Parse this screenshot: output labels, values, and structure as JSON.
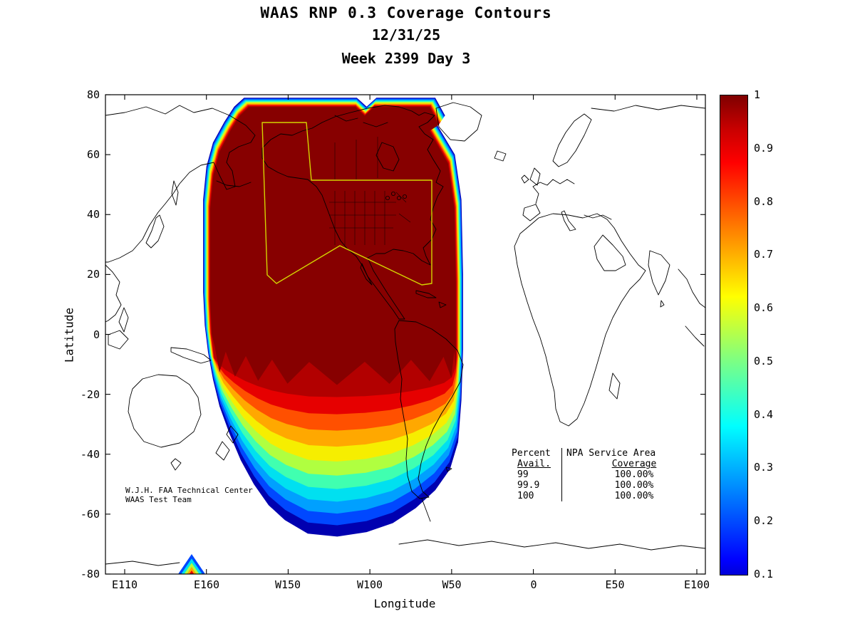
{
  "figure": {
    "title_line1": "WAAS RNP 0.3 Coverage Contours",
    "title_line2": "12/31/25",
    "title_line3": "Week 2399 Day 3"
  },
  "axes": {
    "xlabel": "Longitude",
    "ylabel": "Latitude",
    "x_ticks": [
      "E110",
      "E160",
      "W150",
      "W100",
      "W50",
      "0",
      "E50",
      "E100"
    ],
    "y_ticks": [
      "80",
      "60",
      "40",
      "20",
      "0",
      "-20",
      "-40",
      "-60",
      "-80"
    ]
  },
  "colorbar": {
    "tick_labels": [
      "1",
      "0.9",
      "0.8",
      "0.7",
      "0.6",
      "0.5",
      "0.4",
      "0.3",
      "0.2",
      "0.1"
    ]
  },
  "credit": {
    "line1": "W.J.H. FAA Technical Center",
    "line2": "WAAS Test Team"
  },
  "coverage_table": {
    "col1_header": "Percent",
    "col2_header": "NPA Service Area",
    "col1_sub": "Avail.",
    "col2_sub": "Coverage",
    "rows": [
      [
        "99",
        "100.00%"
      ],
      [
        "99.9",
        "100.00%"
      ],
      [
        "100",
        "100.00%"
      ]
    ]
  },
  "chart_data": {
    "type": "heatmap",
    "subtype": "filled-contour availability map over world coastlines",
    "title": "WAAS RNP 0.3 Coverage Contours",
    "date": "12/31/25",
    "week": 2399,
    "day": 3,
    "xlabel": "Longitude",
    "ylabel": "Latitude",
    "x_tick_labels": [
      "E110",
      "E160",
      "W150",
      "W100",
      "W50",
      "0",
      "E50",
      "E100"
    ],
    "y_tick_values": [
      80,
      60,
      40,
      20,
      0,
      -20,
      -40,
      -60,
      -80
    ],
    "colormap": "jet",
    "colorbar_range": [
      0.1,
      1.0
    ],
    "colorbar_tick_values": [
      1,
      0.9,
      0.8,
      0.7,
      0.6,
      0.5,
      0.4,
      0.3,
      0.2,
      0.1
    ],
    "contour_levels": [
      0.1,
      0.2,
      0.3,
      0.4,
      0.5,
      0.6,
      0.7,
      0.8,
      0.9,
      1.0
    ],
    "coverage_region": {
      "lon_extent": [
        "E155",
        "W40"
      ],
      "lat_extent": [
        -70,
        79
      ],
      "description": "Availability near 1.0 (dark red) over North America, the eastern Pacific and northern South America; contour bands decrease southward starting near 20S, reaching 0.1 (dark blue) near 65-70S; a small secondary contour spot appears near 78S around E150."
    },
    "service_area_outline": "Yellow polygon over Alaska and CONUS (NPA service area)",
    "service_area_coverage_table": {
      "columns": [
        "Percent Avail.",
        "NPA Service Area Coverage"
      ],
      "rows": [
        [
          "99",
          "100.00%"
        ],
        [
          "99.9",
          "100.00%"
        ],
        [
          "100",
          "100.00%"
        ]
      ]
    },
    "credit": "W.J.H. FAA Technical Center / WAAS Test Team"
  }
}
